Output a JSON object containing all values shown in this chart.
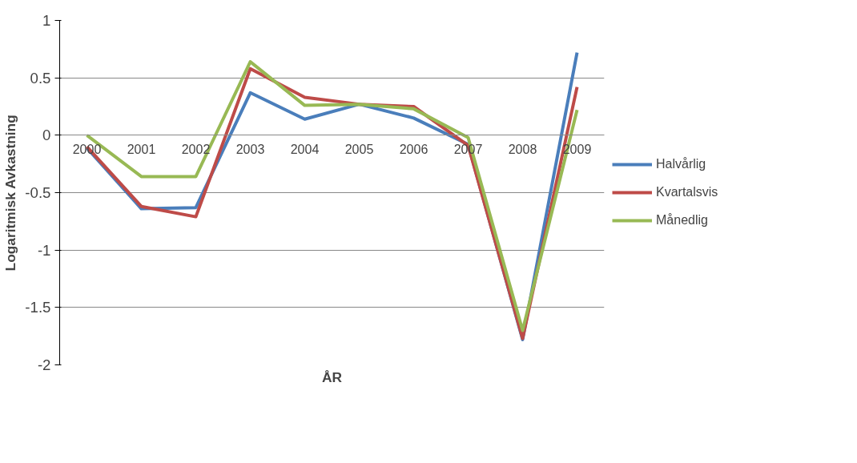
{
  "chart_data": {
    "type": "line",
    "xlabel": "ÅR",
    "ylabel": "Logaritmisk Avkastning",
    "categories": [
      "2000",
      "2001",
      "2002",
      "2003",
      "2004",
      "2005",
      "2006",
      "2007",
      "2008",
      "2009"
    ],
    "series": [
      {
        "name": "Halvårlig",
        "color": "#4a7ebb",
        "values": [
          -0.11,
          -0.64,
          -0.63,
          0.37,
          0.14,
          0.27,
          0.15,
          -0.08,
          -1.78,
          0.72
        ]
      },
      {
        "name": "Kvartalsvis",
        "color": "#be4b48",
        "values": [
          -0.1,
          -0.62,
          -0.71,
          0.58,
          0.33,
          0.27,
          0.25,
          -0.09,
          -1.77,
          0.42
        ]
      },
      {
        "name": "Månedlig",
        "color": "#98b954",
        "values": [
          0.0,
          -0.36,
          -0.36,
          0.64,
          0.26,
          0.27,
          0.23,
          -0.02,
          -1.7,
          0.22
        ]
      }
    ],
    "ylim": [
      -2,
      1
    ],
    "yticks": [
      -2,
      -1.5,
      -1,
      -0.5,
      0,
      0.5,
      1
    ],
    "grid": "y",
    "legend": "right",
    "marker": "none",
    "line_style": "solid"
  }
}
